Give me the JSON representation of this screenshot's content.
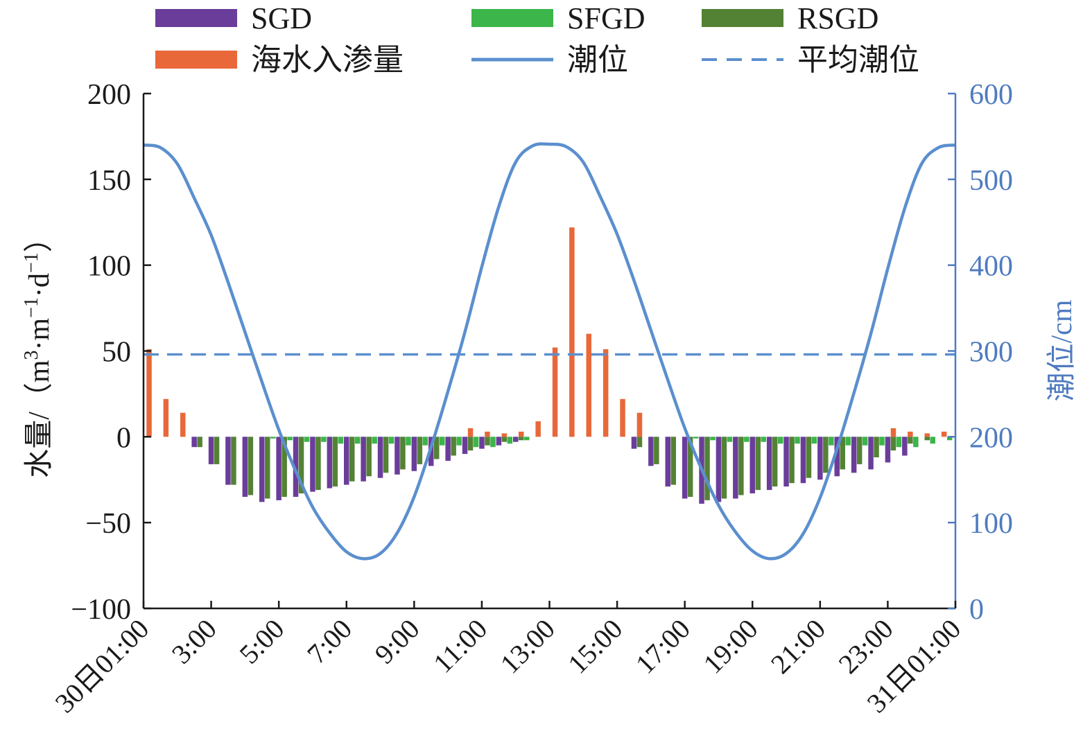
{
  "chart_data": {
    "type": "bar",
    "x_tick_labels": [
      "30日01:00",
      "3:00",
      "5:00",
      "7:00",
      "9:00",
      "11:00",
      "13:00",
      "15:00",
      "17:00",
      "19:00",
      "21:00",
      "23:00",
      "31日01:00"
    ],
    "x_range_hours": [
      0,
      24
    ],
    "left_axis": {
      "label": "水量/（m³·m⁻¹·d⁻¹）",
      "label_parts": {
        "base": "水量/（m",
        "sup1": "3",
        "mid1": "·m",
        "sup2": "−1",
        "mid2": "·d",
        "sup3": "−1",
        "end": "）"
      },
      "ylim": [
        -100,
        200
      ],
      "ticks": [
        -100,
        -50,
        0,
        50,
        100,
        150,
        200
      ],
      "tick_labels": [
        "−100",
        "−50",
        "0",
        "50",
        "100",
        "150",
        "200"
      ]
    },
    "right_axis": {
      "label": "潮位/cm",
      "ylim": [
        0,
        600
      ],
      "ticks": [
        0,
        100,
        200,
        300,
        400,
        500,
        600
      ]
    },
    "bar_hours": [
      0,
      0.5,
      1,
      1.5,
      2,
      2.5,
      3,
      3.5,
      4,
      4.5,
      5,
      5.5,
      6,
      6.5,
      7,
      7.5,
      8,
      8.5,
      9,
      9.5,
      10,
      10.5,
      11,
      11.5,
      12,
      12.5,
      13,
      13.5,
      14,
      14.5,
      15,
      15.5,
      16,
      16.5,
      17,
      17.5,
      18,
      18.5,
      19,
      19.5,
      20,
      20.5,
      21,
      21.5,
      22,
      22.5,
      23,
      23.5
    ],
    "series": [
      {
        "name": "SGD",
        "color": "#6a3d9a",
        "kind": "bar",
        "values": [
          0,
          0,
          0,
          -6,
          -16,
          -28,
          -35,
          -38,
          -37,
          -35,
          -32,
          -30,
          -28,
          -26,
          -24,
          -22,
          -20,
          -17,
          -14,
          -10,
          -7,
          -5,
          -3,
          0,
          0,
          0,
          0,
          0,
          0,
          -7,
          -17,
          -29,
          -36,
          -39,
          -38,
          -36,
          -33,
          -31,
          -29,
          -27,
          -25,
          -23,
          -21,
          -19,
          -15,
          -11,
          0,
          0
        ]
      },
      {
        "name": "SFGD",
        "color": "#3cb54a",
        "kind": "bar",
        "values": [
          0,
          0,
          0,
          0,
          0,
          0,
          0,
          -1,
          -2,
          -3,
          -3,
          -4,
          -4,
          -4,
          -4,
          -5,
          -5,
          -5,
          -5,
          -6,
          -6,
          -4,
          -2,
          0,
          0,
          0,
          0,
          0,
          0,
          0,
          0,
          0,
          -1,
          -2,
          -3,
          -3,
          -3,
          -4,
          -4,
          -4,
          -5,
          -5,
          -5,
          -5,
          -6,
          -6,
          -4,
          -2
        ]
      },
      {
        "name": "RSGD",
        "color": "#548235",
        "kind": "bar",
        "values": [
          0,
          0,
          0,
          -6,
          -16,
          -28,
          -34,
          -36,
          -35,
          -33,
          -31,
          -29,
          -26,
          -23,
          -21,
          -19,
          -16,
          -13,
          -11,
          -8,
          -5,
          -3,
          -2,
          0,
          0,
          0,
          0,
          0,
          0,
          -6,
          -16,
          -28,
          -35,
          -37,
          -36,
          -34,
          -31,
          -29,
          -27,
          -24,
          -21,
          -19,
          -16,
          -12,
          -8,
          -4,
          -2,
          0
        ]
      },
      {
        "name": "海水入渗量",
        "color": "#e8683a",
        "kind": "bar",
        "values": [
          51,
          22,
          14,
          0,
          0,
          0,
          0,
          0,
          0,
          0,
          0,
          0,
          0,
          0,
          0,
          0,
          0,
          0,
          0,
          5,
          3,
          2,
          3,
          9,
          52,
          122,
          60,
          51,
          22,
          14,
          0,
          0,
          0,
          0,
          0,
          0,
          0,
          0,
          0,
          0,
          0,
          0,
          0,
          0,
          5,
          3,
          2,
          3
        ]
      },
      {
        "name": "潮位",
        "color": "#5b8fce",
        "kind": "line",
        "axis": "right",
        "hours": [
          0,
          0.5,
          1,
          1.5,
          2,
          2.5,
          3,
          3.5,
          4,
          4.5,
          5,
          5.5,
          6,
          6.5,
          7,
          7.5,
          8,
          8.5,
          9,
          9.5,
          10,
          10.5,
          11,
          11.5,
          12,
          12.5,
          13,
          13.5,
          14,
          14.5,
          15,
          15.5,
          16,
          16.5,
          17,
          17.5,
          18,
          18.5,
          19,
          19.5,
          20,
          20.5,
          21,
          21.5,
          22,
          22.5,
          23,
          23.5,
          24
        ],
        "values": [
          540,
          537,
          518,
          478,
          435,
          380,
          322,
          264,
          208,
          160,
          118,
          88,
          66,
          58,
          64,
          88,
          130,
          188,
          253,
          322,
          398,
          468,
          520,
          539,
          541,
          538,
          520,
          480,
          436,
          382,
          324,
          266,
          210,
          162,
          120,
          89,
          67,
          58,
          64,
          87,
          129,
          186,
          251,
          320,
          396,
          466,
          518,
          537,
          540
        ]
      },
      {
        "name": "平均潮位",
        "color": "#5b8fce",
        "kind": "dashed",
        "axis": "right",
        "value": 296
      }
    ],
    "legend": {
      "placement": "top",
      "columns": 3
    },
    "grid": false
  }
}
